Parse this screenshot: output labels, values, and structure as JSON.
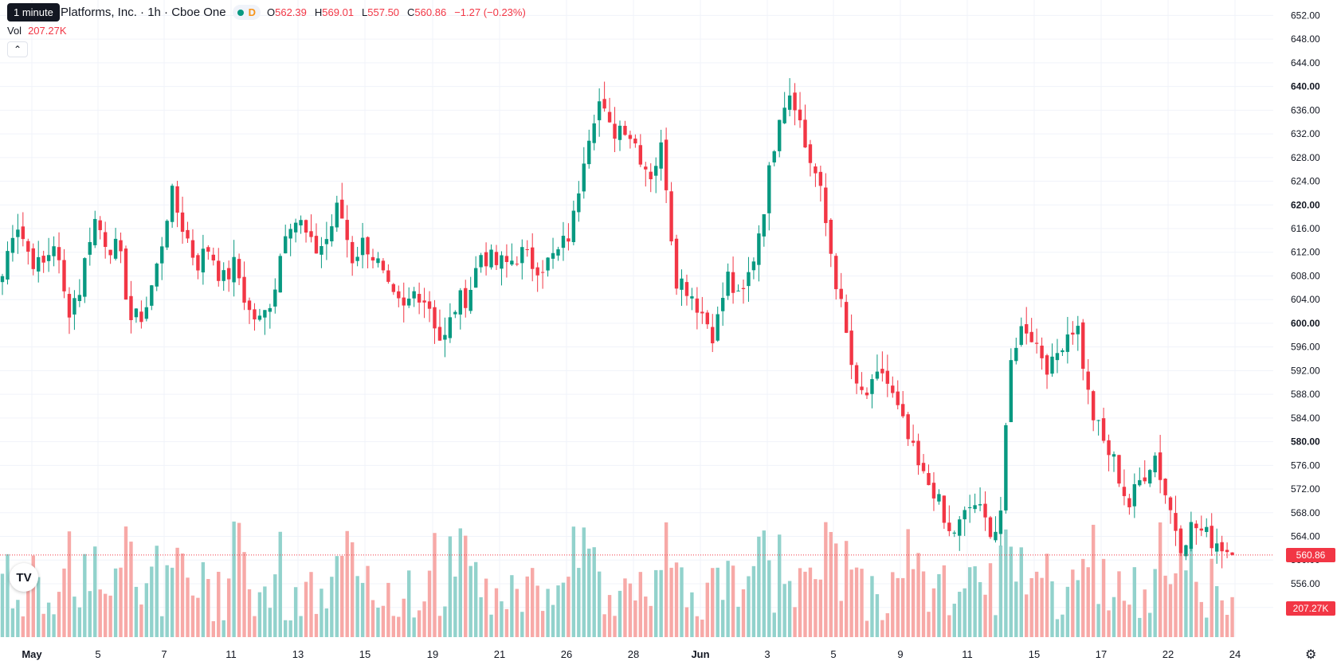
{
  "header": {
    "tooltip": "1 minute",
    "title": "Platforms, Inc. · 1h · Cboe One",
    "market_status_icon": "market-open-dot-icon",
    "d_badge": "D",
    "ohlc": {
      "o_label": "O",
      "o_value": "562.39",
      "h_label": "H",
      "h_value": "569.01",
      "l_label": "L",
      "l_value": "557.50",
      "c_label": "C",
      "c_value": "560.86",
      "change": "−1.27 (−0.23%)"
    },
    "volume_label": "Vol",
    "volume_value": "207.27K",
    "collapse_icon": "chevron-up-icon"
  },
  "price_axis": {
    "current_price": "560.86",
    "current_volume": "207.27K"
  },
  "colors": {
    "up": "#089981",
    "down": "#f23645",
    "up_volume": "#92d2cc",
    "down_volume": "#f7a9a7",
    "grid": "#f0f3fa",
    "text": "#131722"
  },
  "logo": "TV",
  "settings_icon": "gear-icon",
  "chart_data": {
    "type": "candlestick",
    "ylim": [
      549,
      653
    ],
    "y_ticks": [
      "552.00",
      "556.00",
      "560.00",
      "564.00",
      "568.00",
      "572.00",
      "576.00",
      "580.00",
      "584.00",
      "588.00",
      "592.00",
      "596.00",
      "600.00",
      "604.00",
      "608.00",
      "612.00",
      "616.00",
      "620.00",
      "624.00",
      "628.00",
      "632.00",
      "636.00",
      "640.00",
      "644.00",
      "648.00",
      "652.00"
    ],
    "bold_ticks": [
      "580.00",
      "600.00",
      "620.00",
      "640.00"
    ],
    "x_ticks": [
      {
        "label": "May",
        "bold": true
      },
      {
        "label": "5"
      },
      {
        "label": "7"
      },
      {
        "label": "11"
      },
      {
        "label": "13"
      },
      {
        "label": "15"
      },
      {
        "label": "19"
      },
      {
        "label": "21"
      },
      {
        "label": "26"
      },
      {
        "label": "28"
      },
      {
        "label": "Jun",
        "bold": true
      },
      {
        "label": "3"
      },
      {
        "label": "5"
      },
      {
        "label": "9"
      },
      {
        "label": "11"
      },
      {
        "label": "15"
      },
      {
        "label": "17"
      },
      {
        "label": "22"
      },
      {
        "label": "24"
      }
    ],
    "anchor_closes": [
      608,
      618,
      612,
      609,
      614,
      602,
      606,
      618,
      614,
      612,
      600,
      602,
      610,
      622,
      616,
      610,
      613,
      607,
      610,
      602,
      600,
      606,
      618,
      617,
      612,
      614,
      620,
      611,
      614,
      610,
      604,
      602,
      606,
      603,
      596,
      603,
      605,
      612,
      610,
      610,
      612,
      610,
      610,
      612,
      616,
      630,
      638,
      632,
      634,
      630,
      625,
      630,
      608,
      606,
      602,
      598,
      608,
      603,
      611,
      622,
      636,
      640,
      630,
      624,
      612,
      600,
      588,
      588,
      592,
      586,
      580,
      574,
      572,
      564,
      566,
      570,
      566,
      565,
      596,
      600,
      596,
      592,
      598,
      600,
      586,
      580,
      576,
      569,
      574,
      578,
      570,
      563,
      566,
      564,
      563,
      561
    ]
  }
}
